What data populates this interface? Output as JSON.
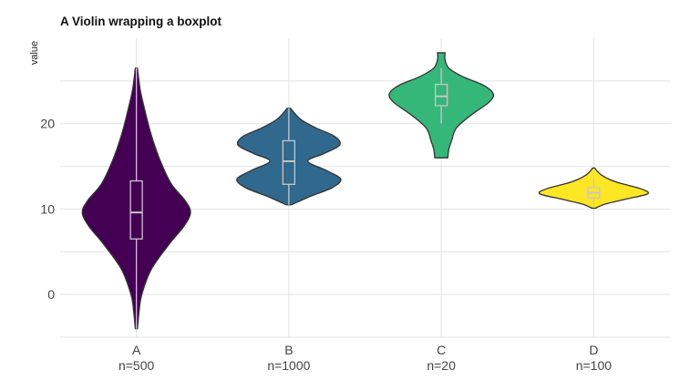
{
  "chart_data": {
    "type": "violin",
    "title": "A Violin wrapping a boxplot",
    "xlabel": "",
    "ylabel": "value",
    "ylim": [
      -5,
      30
    ],
    "yticks": [
      0,
      10,
      20
    ],
    "grid": true,
    "legend": "none",
    "categories": [
      "A",
      "B",
      "C",
      "D"
    ],
    "category_labels": [
      "A\nn=500",
      "B\nn=1000",
      "C\nn=20",
      "D\nn=100"
    ],
    "groups": [
      {
        "name": "A",
        "count_label": "n=500",
        "color": "#440154",
        "min": -4,
        "max": 26.5,
        "box": {
          "q1": 6.5,
          "median": 9.6,
          "q3": 13.3,
          "whisker_low": -4,
          "whisker_high": 26.5
        },
        "density": [
          [
            -4,
            0.02
          ],
          [
            -2,
            0.05
          ],
          [
            0,
            0.1
          ],
          [
            3,
            0.28
          ],
          [
            6,
            0.62
          ],
          [
            8,
            0.88
          ],
          [
            9.6,
            1.0
          ],
          [
            11,
            0.9
          ],
          [
            13,
            0.64
          ],
          [
            16,
            0.42
          ],
          [
            19,
            0.26
          ],
          [
            22,
            0.14
          ],
          [
            24,
            0.07
          ],
          [
            26.5,
            0.02
          ]
        ]
      },
      {
        "name": "B",
        "count_label": "n=1000",
        "color": "#31688e",
        "min": 10.5,
        "max": 21.8,
        "box": {
          "q1": 12.9,
          "median": 15.6,
          "q3": 18.0,
          "whisker_low": 10.5,
          "whisker_high": 21.8
        },
        "density": [
          [
            10.5,
            0.05
          ],
          [
            11.5,
            0.4
          ],
          [
            12.5,
            0.8
          ],
          [
            13.5,
            0.96
          ],
          [
            14.5,
            0.7
          ],
          [
            15.6,
            0.35
          ],
          [
            16.5,
            0.65
          ],
          [
            17.5,
            0.94
          ],
          [
            18.5,
            0.85
          ],
          [
            19.5,
            0.5
          ],
          [
            20.5,
            0.22
          ],
          [
            21.8,
            0.03
          ]
        ]
      },
      {
        "name": "C",
        "count_label": "n=20",
        "color": "#35b779",
        "min": 16,
        "max": 28.3,
        "box": {
          "q1": 22.1,
          "median": 23.2,
          "q3": 24.6,
          "whisker_low": 20,
          "whisker_high": 26.5
        },
        "density": [
          [
            16,
            0.12
          ],
          [
            17,
            0.14
          ],
          [
            18,
            0.19
          ],
          [
            19.5,
            0.28
          ],
          [
            21,
            0.55
          ],
          [
            22.5,
            0.88
          ],
          [
            23.5,
            0.96
          ],
          [
            24.5,
            0.78
          ],
          [
            25.5,
            0.4
          ],
          [
            26.5,
            0.14
          ],
          [
            27.5,
            0.07
          ],
          [
            28.3,
            0.07
          ]
        ]
      },
      {
        "name": "D",
        "count_label": "n=100",
        "color": "#fde725",
        "min": 10.1,
        "max": 14.8,
        "box": {
          "q1": 11.3,
          "median": 11.9,
          "q3": 12.5,
          "whisker_low": 10.3,
          "whisker_high": 13.8
        },
        "density": [
          [
            10.1,
            0.03
          ],
          [
            10.6,
            0.22
          ],
          [
            11.2,
            0.62
          ],
          [
            11.8,
            1.0
          ],
          [
            12.4,
            0.86
          ],
          [
            13,
            0.5
          ],
          [
            13.5,
            0.28
          ],
          [
            14,
            0.14
          ],
          [
            14.4,
            0.07
          ],
          [
            14.8,
            0.02
          ]
        ]
      }
    ]
  }
}
